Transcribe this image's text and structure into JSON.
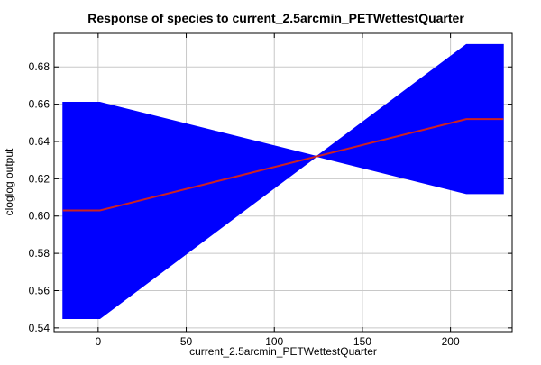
{
  "chart_data": {
    "type": "area",
    "title": "Response of species to current_2.5arcmin_PETWettestQuarter",
    "xlabel": "current_2.5arcmin_PETWettestQuarter",
    "ylabel": "cloglog output",
    "xlim": [
      -25,
      235
    ],
    "ylim": [
      0.538,
      0.698
    ],
    "grid": true,
    "x_ticks": [
      0,
      50,
      100,
      150,
      200
    ],
    "y_ticks": [
      0.54,
      0.56,
      0.58,
      0.6,
      0.62,
      0.64,
      0.66,
      0.68
    ],
    "x_tick_labels": [
      "0",
      "50",
      "100",
      "150",
      "200"
    ],
    "y_tick_labels": [
      "0.54",
      "0.56",
      "0.58",
      "0.60",
      "0.62",
      "0.64",
      "0.66",
      "0.68"
    ],
    "series": [
      {
        "kind": "band",
        "color": "#0000ff",
        "x": [
          -20,
          1,
          124,
          209,
          230
        ],
        "lower": [
          0.545,
          0.545,
          0.632,
          0.612,
          0.612
        ],
        "upper": [
          0.661,
          0.661,
          0.632,
          0.692,
          0.692
        ]
      },
      {
        "kind": "line",
        "color": "#cc2222",
        "x": [
          -20,
          1,
          209,
          230
        ],
        "y": [
          0.603,
          0.603,
          0.652,
          0.652
        ]
      }
    ]
  }
}
